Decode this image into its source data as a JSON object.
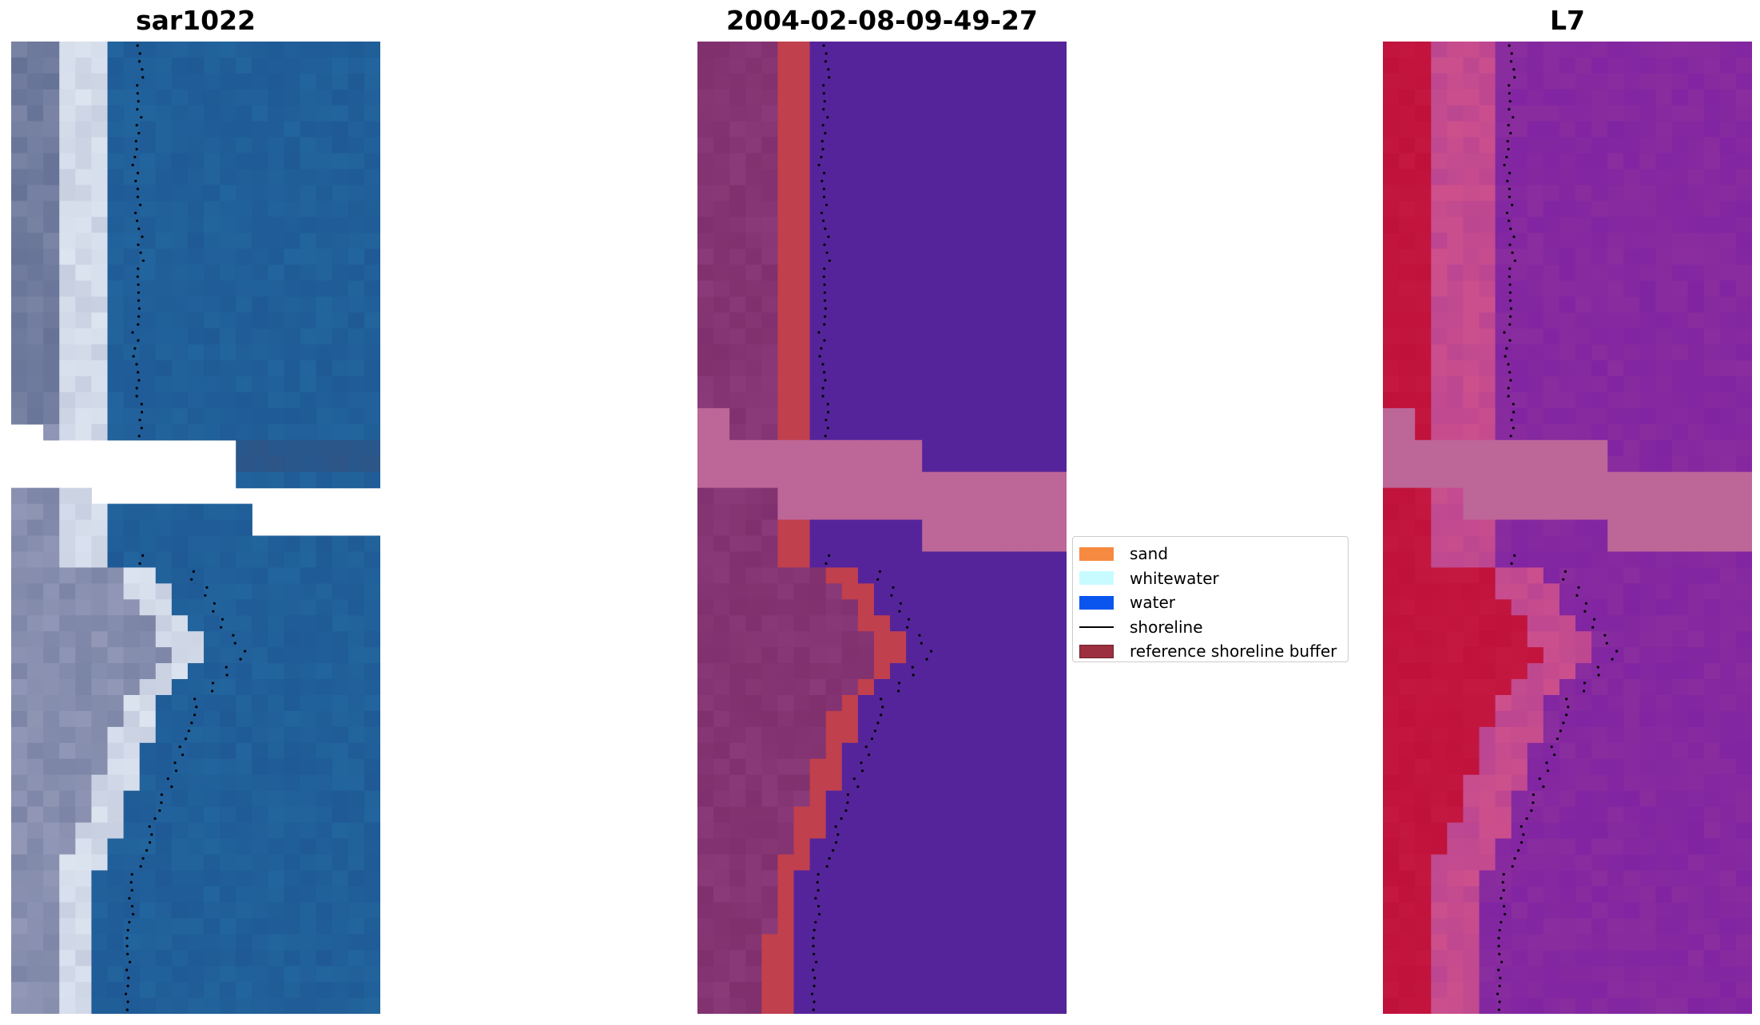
{
  "panels": [
    {
      "title": "sar1022"
    },
    {
      "title": "2004-02-08-09-49-27"
    },
    {
      "title": "L7"
    }
  ],
  "legend": {
    "items": [
      {
        "label": "sand",
        "color": "#f58a40",
        "kind": "patch"
      },
      {
        "label": "whitewater",
        "color": "#c8fbff",
        "kind": "patch"
      },
      {
        "label": "water",
        "color": "#0a55ee",
        "kind": "patch"
      },
      {
        "label": "shoreline",
        "color": "#000000",
        "kind": "line"
      },
      {
        "label": "reference shoreline buffer",
        "color": "#9c3040",
        "kind": "patch"
      }
    ]
  },
  "colors": {
    "rgb_water": "#1f5a96",
    "rgb_sand": "#d8e0ee",
    "rgb_land": "#9aa0bd",
    "class_water": "#55249a",
    "class_land": "#8a3a78",
    "class_buffer": "#c0404e",
    "class_cloud": "#bd6698",
    "ndwi_land": "#c0113a",
    "ndwi_water": "#8a2d9e",
    "ndwi_cloud": "#bd6698"
  }
}
